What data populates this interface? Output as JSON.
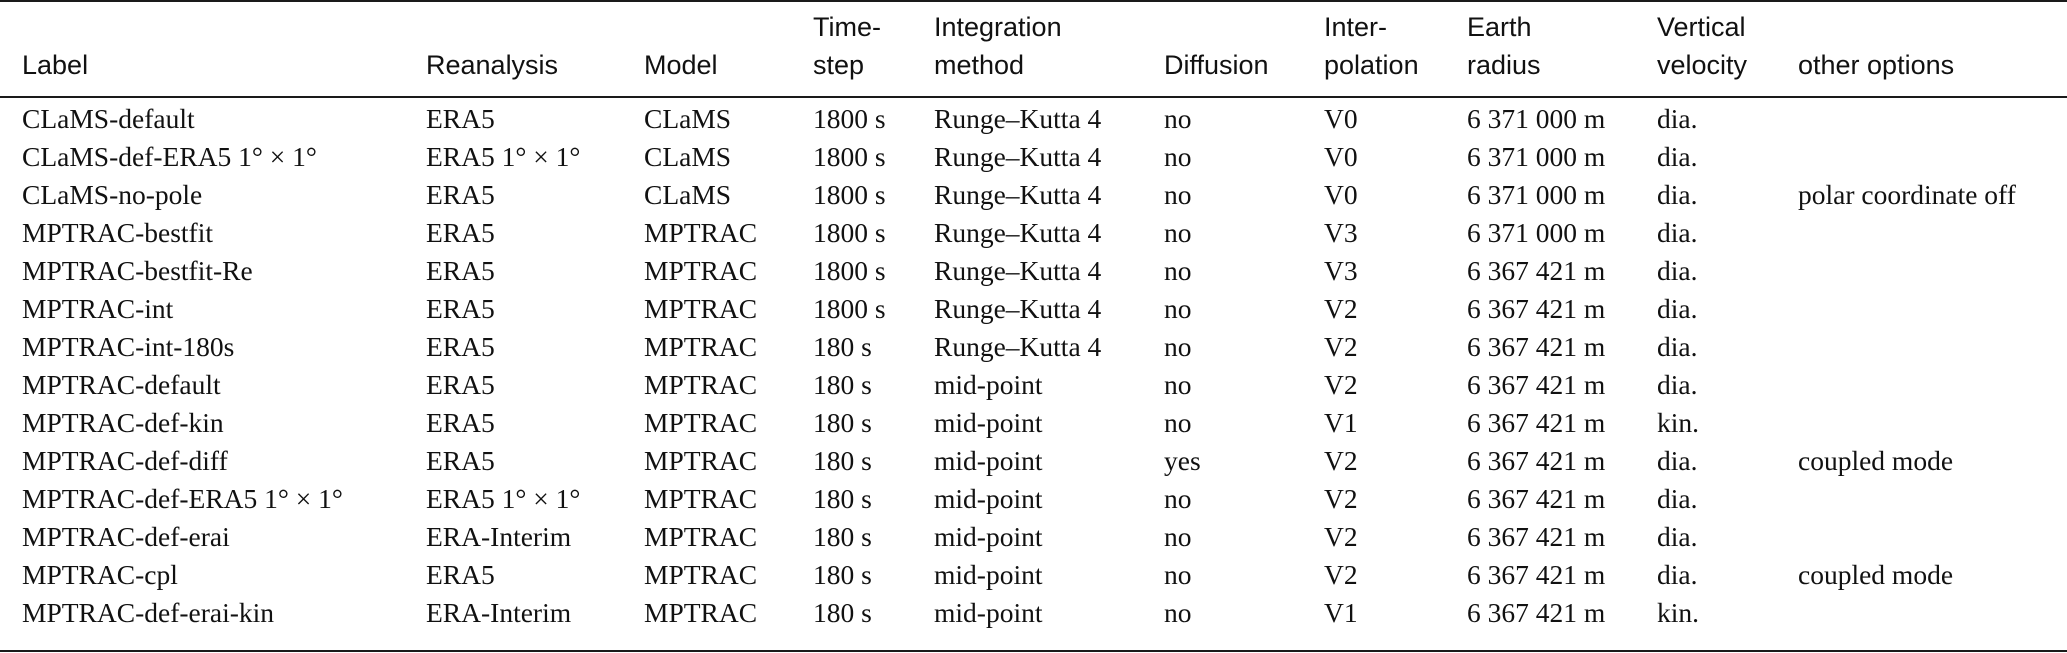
{
  "table": {
    "headers": [
      "Label",
      "Reanalysis",
      "Model",
      "Time-\nstep",
      "Integration\nmethod",
      "Diffusion",
      "Inter-\npolation",
      "Earth\nradius",
      "Vertical\nvelocity",
      "other options"
    ],
    "rows": [
      [
        "CLaMS-default",
        "ERA5",
        "CLaMS",
        "1800 s",
        "Runge–Kutta 4",
        "no",
        "V0",
        "6 371 000 m",
        "dia.",
        ""
      ],
      [
        "CLaMS-def-ERA5 1° × 1°",
        "ERA5 1° × 1°",
        "CLaMS",
        "1800 s",
        "Runge–Kutta 4",
        "no",
        "V0",
        "6 371 000 m",
        "dia.",
        ""
      ],
      [
        "CLaMS-no-pole",
        "ERA5",
        "CLaMS",
        "1800 s",
        "Runge–Kutta 4",
        "no",
        "V0",
        "6 371 000 m",
        "dia.",
        "polar coordinate off"
      ],
      [
        "MPTRAC-bestfit",
        "ERA5",
        "MPTRAC",
        "1800 s",
        "Runge–Kutta 4",
        "no",
        "V3",
        "6 371 000 m",
        "dia.",
        ""
      ],
      [
        "MPTRAC-bestfit-Re",
        "ERA5",
        "MPTRAC",
        "1800 s",
        "Runge–Kutta 4",
        "no",
        "V3",
        "6 367 421 m",
        "dia.",
        ""
      ],
      [
        "MPTRAC-int",
        "ERA5",
        "MPTRAC",
        "1800 s",
        "Runge–Kutta 4",
        "no",
        "V2",
        "6 367 421 m",
        "dia.",
        ""
      ],
      [
        "MPTRAC-int-180s",
        "ERA5",
        "MPTRAC",
        "180 s",
        "Runge–Kutta 4",
        "no",
        "V2",
        "6 367 421 m",
        "dia.",
        ""
      ],
      [
        "MPTRAC-default",
        "ERA5",
        "MPTRAC",
        "180 s",
        "mid-point",
        "no",
        "V2",
        "6 367 421 m",
        "dia.",
        ""
      ],
      [
        "MPTRAC-def-kin",
        "ERA5",
        "MPTRAC",
        "180 s",
        "mid-point",
        "no",
        "V1",
        "6 367 421 m",
        "kin.",
        ""
      ],
      [
        "MPTRAC-def-diff",
        "ERA5",
        "MPTRAC",
        "180 s",
        "mid-point",
        "yes",
        "V2",
        "6 367 421 m",
        "dia.",
        "coupled mode"
      ],
      [
        "MPTRAC-def-ERA5 1° × 1°",
        "ERA5 1° × 1°",
        "MPTRAC",
        "180 s",
        "mid-point",
        "no",
        "V2",
        "6 367 421 m",
        "dia.",
        ""
      ],
      [
        "MPTRAC-def-erai",
        "ERA-Interim",
        "MPTRAC",
        "180 s",
        "mid-point",
        "no",
        "V2",
        "6 367 421 m",
        "dia.",
        ""
      ],
      [
        "MPTRAC-cpl",
        "ERA5",
        "MPTRAC",
        "180 s",
        "mid-point",
        "no",
        "V2",
        "6 367 421 m",
        "dia.",
        "coupled mode"
      ],
      [
        "MPTRAC-def-erai-kin",
        "ERA-Interim",
        "MPTRAC",
        "180 s",
        "mid-point",
        "no",
        "V1",
        "6 367 421 m",
        "kin.",
        ""
      ]
    ]
  }
}
